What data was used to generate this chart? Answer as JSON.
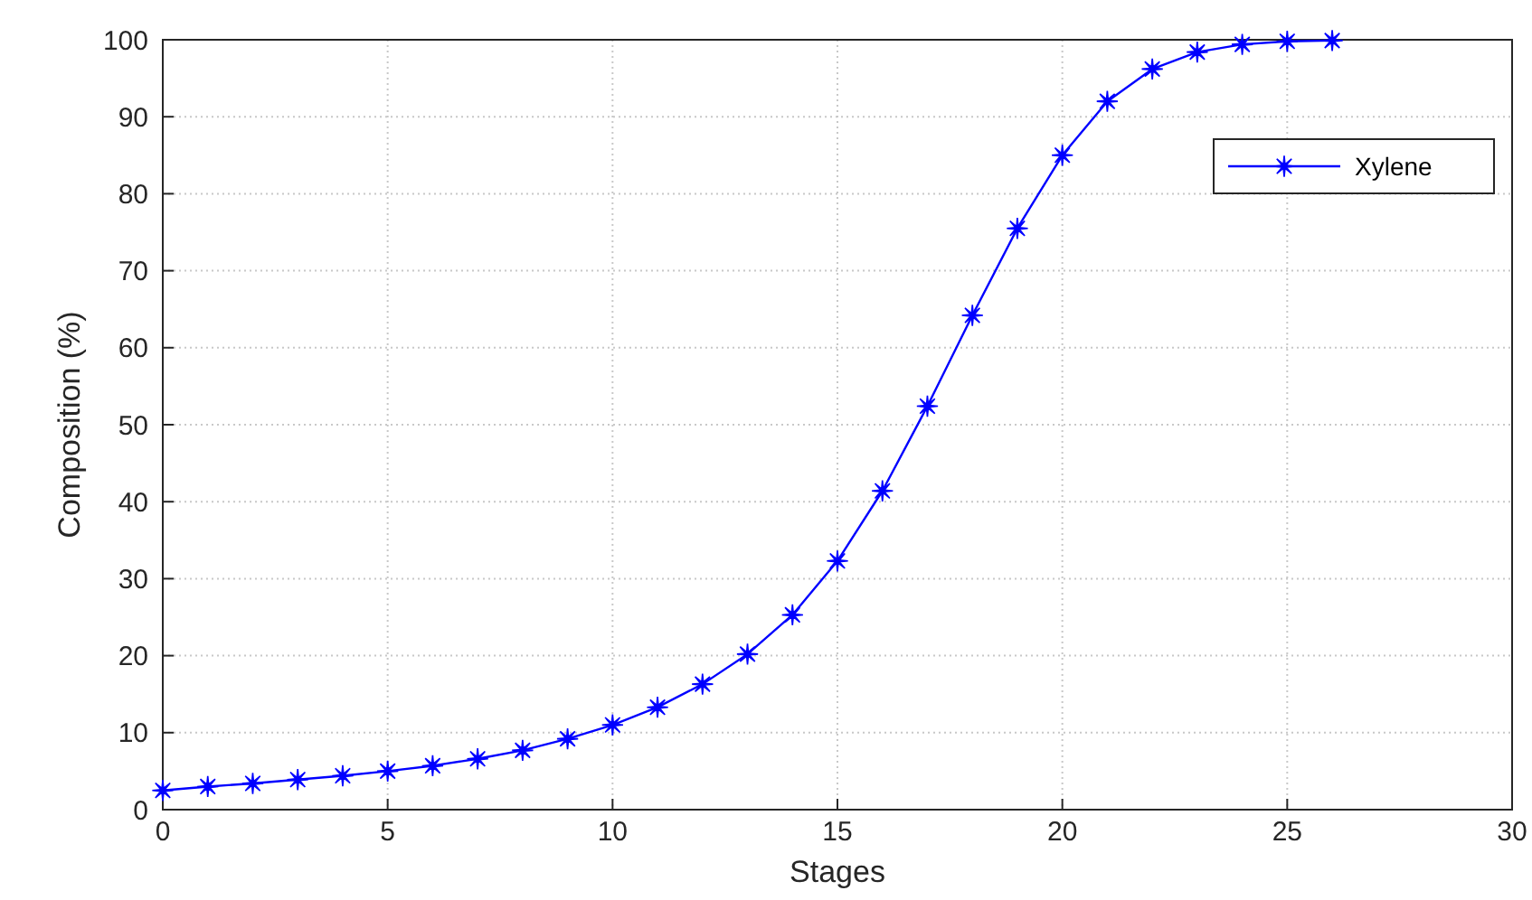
{
  "chart_data": {
    "type": "line",
    "xlabel": "Stages",
    "ylabel": "Composition (%)",
    "x": [
      0,
      1,
      2,
      3,
      4,
      5,
      6,
      7,
      8,
      9,
      10,
      11,
      12,
      13,
      14,
      15,
      16,
      17,
      18,
      19,
      20,
      21,
      22,
      23,
      24,
      25,
      26
    ],
    "series": [
      {
        "name": "Xylene",
        "color": "#0000ff",
        "values": [
          2.5,
          3,
          3.4,
          3.9,
          4.4,
          5,
          5.7,
          6.6,
          7.7,
          9.2,
          11,
          13.3,
          16.3,
          20.2,
          25.3,
          32.3,
          41.4,
          52.4,
          64.2,
          75.5,
          85,
          92,
          96.2,
          98.4,
          99.4,
          99.8,
          99.9
        ]
      }
    ],
    "xlim": [
      0,
      30
    ],
    "xticks": [
      0,
      5,
      10,
      15,
      20,
      25,
      30
    ],
    "ylim": [
      0,
      100
    ],
    "yticks": [
      0,
      10,
      20,
      30,
      40,
      50,
      60,
      70,
      80,
      90,
      100
    ],
    "grid": true,
    "legend": "top right",
    "marker": "star",
    "line_style": "solid"
  }
}
